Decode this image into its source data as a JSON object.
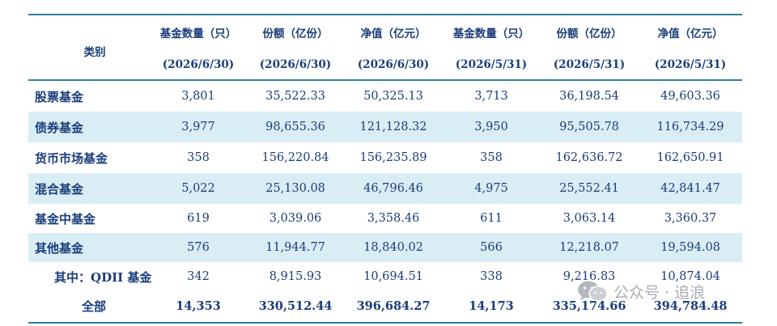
{
  "header": {
    "category": "类别",
    "columns": [
      {
        "title": "基金数量（只）",
        "date": "(2026/6/30)"
      },
      {
        "title": "份额（亿份）",
        "date": "(2026/6/30)"
      },
      {
        "title": "净值（亿元）",
        "date": "(2026/6/30)"
      },
      {
        "title": "基金数量（只）",
        "date": "(2026/5/31)"
      },
      {
        "title": "份额（亿份）",
        "date": "(2026/5/31)"
      },
      {
        "title": "净值（亿元）",
        "date": "(2026/5/31)"
      }
    ]
  },
  "rows": [
    {
      "name": "股票基金",
      "values": [
        "3,801",
        "35,522.33",
        "50,325.13",
        "3,713",
        "36,198.54",
        "49,603.36"
      ]
    },
    {
      "name": "债券基金",
      "values": [
        "3,977",
        "98,655.36",
        "121,128.32",
        "3,950",
        "95,505.78",
        "116,734.29"
      ]
    },
    {
      "name": "货币市场基金",
      "values": [
        "358",
        "156,220.84",
        "156,235.89",
        "358",
        "162,636.72",
        "162,650.91"
      ]
    },
    {
      "name": "混合基金",
      "values": [
        "5,022",
        "25,130.08",
        "46,796.46",
        "4,975",
        "25,552.41",
        "42,841.47"
      ]
    },
    {
      "name": "基金中基金",
      "values": [
        "619",
        "3,039.06",
        "3,358.46",
        "611",
        "3,063.14",
        "3,360.37"
      ]
    },
    {
      "name": "其他基金",
      "values": [
        "576",
        "11,944.77",
        "18,840.02",
        "566",
        "12,218.07",
        "19,594.08"
      ]
    },
    {
      "name": "其中：QDII 基金",
      "values": [
        "342",
        "8,915.93",
        "10,694.51",
        "338",
        "9,216.83",
        "10,874.04"
      ]
    },
    {
      "name": "全部",
      "values": [
        "14,353",
        "330,512.44",
        "396,684.27",
        "14,173",
        "335,174.66",
        "394,784.48"
      ]
    }
  ],
  "watermark": {
    "text": "公众号 · 追浪",
    "icon": "wechat-icon"
  },
  "colors": {
    "rule": "#2e7f9a",
    "shade": "#d9edf5",
    "text": "#1b3d7a"
  }
}
